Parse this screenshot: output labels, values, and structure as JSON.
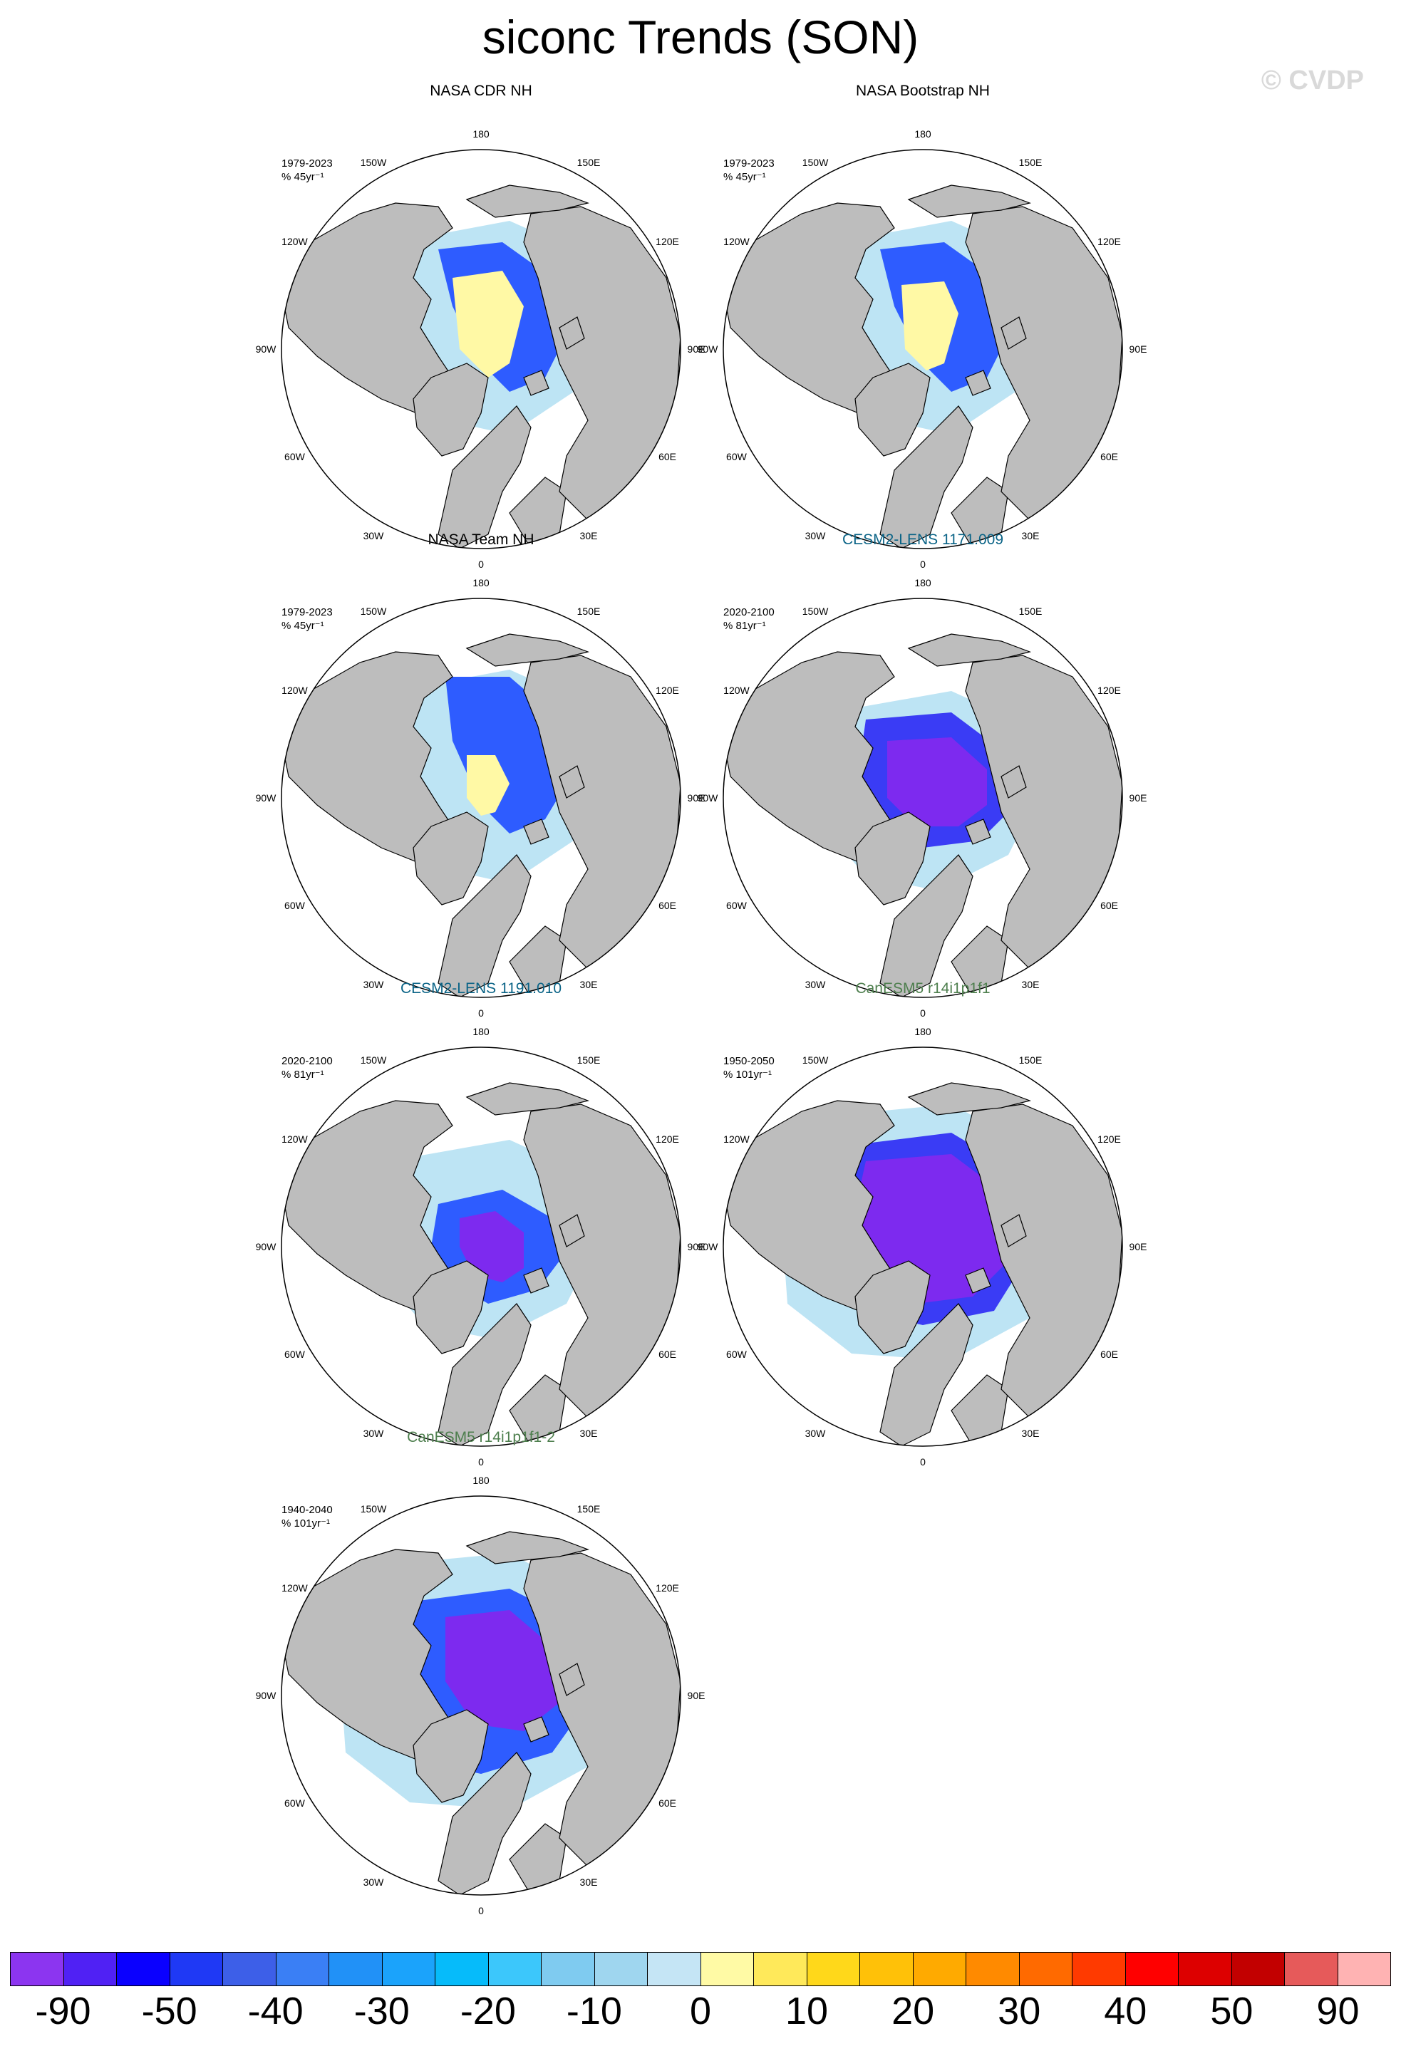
{
  "title": "siconc Trends (SON)",
  "watermark": "© CVDP",
  "colors": {
    "land": "#bdbdbd",
    "ocean": "#ffffff",
    "positive_trend": "#fff9a5",
    "weak_decline": "#bde4f4",
    "moderate_decline": "#1e63ff",
    "strong_decline": "#7d2aef"
  },
  "map_labels": {
    "lon_180": "180",
    "lon_150e": "150E",
    "lon_120e": "120E",
    "lon_90e": "90E",
    "lon_60e": "60E",
    "lon_30e": "30E",
    "lon_0": "0",
    "lon_30w": "30W",
    "lon_60w": "60W",
    "lon_90w": "90W",
    "lon_120w": "120W",
    "lon_150w": "150W"
  },
  "panels": [
    {
      "title": "NASA CDR NH",
      "title_color": "#000000",
      "period": "1979-2023",
      "units": "% 45yr⁻¹",
      "pattern": "obs1"
    },
    {
      "title": "NASA Bootstrap NH",
      "title_color": "#000000",
      "period": "1979-2023",
      "units": "% 45yr⁻¹",
      "pattern": "obs2"
    },
    {
      "title": "NASA Team NH",
      "title_color": "#000000",
      "period": "1979-2023",
      "units": "% 45yr⁻¹",
      "pattern": "obs3"
    },
    {
      "title": "CESM2-LENS 1171.009",
      "title_color": "#0b6487",
      "period": "2020-2100",
      "units": "% 81yr⁻¹",
      "pattern": "cesm1"
    },
    {
      "title": "CESM2-LENS 1191.010",
      "title_color": "#0b6487",
      "period": "2020-2100",
      "units": "% 81yr⁻¹",
      "pattern": "cesm2"
    },
    {
      "title": "CanESM5 r14i1p1f1",
      "title_color": "#4e7f4e",
      "period": "1950-2050",
      "units": "% 101yr⁻¹",
      "pattern": "can1"
    },
    {
      "title": "CanESM5 r14i1p1f1-2",
      "title_color": "#4e7f4e",
      "period": "1940-2040",
      "units": "% 101yr⁻¹",
      "pattern": "can2"
    }
  ],
  "colorbar": {
    "colors": [
      "#8c35f0",
      "#5021f4",
      "#0a00ff",
      "#1f39f5",
      "#3d5fe8",
      "#3a7ff5",
      "#2191f7",
      "#1ba3fb",
      "#06bbfa",
      "#3cc7fb",
      "#7fcbf0",
      "#9fd6ef",
      "#c5e5f5",
      "#fffaa5",
      "#ffe95a",
      "#ffd81a",
      "#ffc108",
      "#ffaa00",
      "#ff8a00",
      "#ff6a00",
      "#ff3a00",
      "#ff0000",
      "#dd0000",
      "#c20000",
      "#e65a5a",
      "#ffb3b3"
    ],
    "tick_labels": [
      "-90",
      "-50",
      "-40",
      "-30",
      "-20",
      "-10",
      "0",
      "10",
      "20",
      "30",
      "40",
      "50",
      "90"
    ]
  }
}
